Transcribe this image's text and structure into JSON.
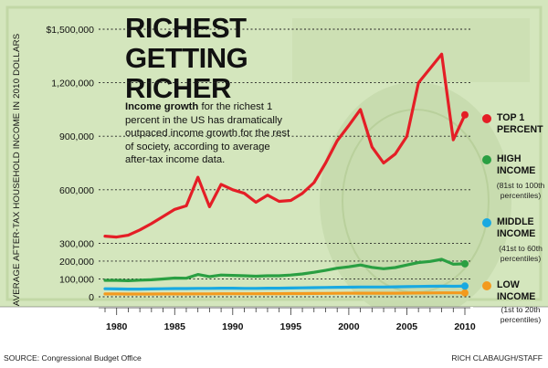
{
  "header": {
    "title_lines": [
      "RICHEST",
      "GETTING",
      "RICHER"
    ],
    "description_lead": "Income growth",
    "description_rest": " for the richest 1 percent in the US has dramatically outpaced income growth for the rest of society, according to average after-tax income data."
  },
  "footer": {
    "source": "SOURCE: Congressional Budget Office",
    "credit": "RICH CLABAUGH/STAFF"
  },
  "legend": [
    {
      "name_lines": [
        "TOP 1",
        "PERCENT"
      ],
      "sub_lines": [],
      "color": "#e41e26"
    },
    {
      "name_lines": [
        "HIGH",
        "INCOME"
      ],
      "sub_lines": [
        "(81st to 100th",
        "percentiles)"
      ],
      "color": "#2a9f42"
    },
    {
      "name_lines": [
        "MIDDLE",
        "INCOME"
      ],
      "sub_lines": [
        "(41st to 60th",
        "percentiles)"
      ],
      "color": "#19a9e1"
    },
    {
      "name_lines": [
        "LOW",
        "INCOME"
      ],
      "sub_lines": [
        "(1st to 20th",
        "percentiles)"
      ],
      "color": "#f39a1e"
    }
  ],
  "chart_data": {
    "type": "line",
    "xlabel": "",
    "ylabel": "AVERAGE AFTER-TAX HOUSEHOLD INCOME IN 2010 DOLLARS",
    "xlim": [
      1979,
      2010
    ],
    "x_ticks": [
      1980,
      1985,
      1990,
      1995,
      2000,
      2005,
      2010
    ],
    "y_ticks": [
      {
        "value": 0,
        "label": "0"
      },
      {
        "value": 100000,
        "label": "100,000"
      },
      {
        "value": 200000,
        "label": "200,000"
      },
      {
        "value": 300000,
        "label": "300,000"
      },
      {
        "value": 600000,
        "label": "600,000"
      },
      {
        "value": 900000,
        "label": "900,000"
      },
      {
        "value": 1200000,
        "label": "1,200,000"
      },
      {
        "value": 1500000,
        "label": "$1,500,000"
      }
    ],
    "ylim": [
      0,
      1500000
    ],
    "x": [
      1979,
      1980,
      1981,
      1982,
      1983,
      1984,
      1985,
      1986,
      1987,
      1988,
      1989,
      1990,
      1991,
      1992,
      1993,
      1994,
      1995,
      1996,
      1997,
      1998,
      1999,
      2000,
      2001,
      2002,
      2003,
      2004,
      2005,
      2006,
      2007,
      2008,
      2009,
      2010
    ],
    "series": [
      {
        "name": "TOP 1 PERCENT",
        "color": "#e41e26",
        "values": [
          340000,
          335000,
          345000,
          375000,
          410000,
          450000,
          490000,
          510000,
          670000,
          505000,
          630000,
          600000,
          580000,
          530000,
          570000,
          535000,
          540000,
          580000,
          640000,
          750000,
          875000,
          960000,
          1050000,
          840000,
          750000,
          800000,
          900000,
          1200000,
          1280000,
          1360000,
          880000,
          1020000
        ]
      },
      {
        "name": "HIGH INCOME",
        "color": "#2a9f42",
        "values": [
          92000,
          92000,
          90000,
          93000,
          95000,
          100000,
          105000,
          104000,
          125000,
          113000,
          122000,
          120000,
          118000,
          115000,
          118000,
          118000,
          122000,
          128000,
          137000,
          148000,
          160000,
          168000,
          178000,
          165000,
          157000,
          164000,
          178000,
          192000,
          198000,
          210000,
          183000,
          185000
        ]
      },
      {
        "name": "MIDDLE INCOME",
        "color": "#19a9e1",
        "values": [
          45000,
          44000,
          43000,
          43000,
          44000,
          45000,
          46000,
          46000,
          47000,
          47000,
          48000,
          48000,
          47000,
          47000,
          48000,
          48000,
          49000,
          50000,
          51000,
          52000,
          53000,
          54000,
          55000,
          55000,
          55000,
          56000,
          57000,
          58000,
          59000,
          60000,
          59000,
          60000
        ]
      },
      {
        "name": "LOW INCOME",
        "color": "#f39a1e",
        "values": [
          16000,
          16000,
          15500,
          15500,
          15500,
          16000,
          16000,
          16000,
          16500,
          16500,
          17000,
          17000,
          17000,
          17000,
          17500,
          17500,
          18000,
          18000,
          18500,
          19000,
          19500,
          20000,
          20000,
          20000,
          20000,
          20000,
          20500,
          21000,
          21500,
          22000,
          22000,
          22000
        ]
      }
    ],
    "grid": "dashed horizontal lines at each y tick",
    "legend_placement": "right"
  }
}
